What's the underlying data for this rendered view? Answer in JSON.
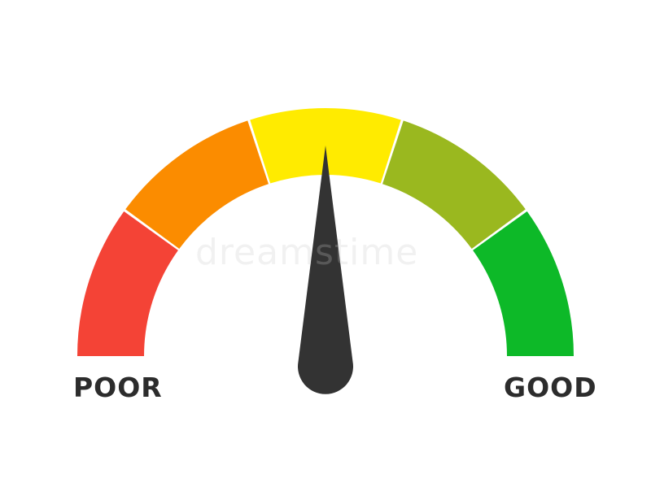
{
  "gauge": {
    "min_label": "POOR",
    "max_label": "GOOD",
    "needle_level": 0.5,
    "segments": [
      {
        "name": "red",
        "color": "#f44336"
      },
      {
        "name": "orange",
        "color": "#fb8c00"
      },
      {
        "name": "yellow",
        "color": "#ffeb00"
      },
      {
        "name": "lime",
        "color": "#9ab81f"
      },
      {
        "name": "green",
        "color": "#0db928"
      }
    ],
    "needle_color": "#333333"
  },
  "watermark": {
    "text": "dreamstime"
  }
}
